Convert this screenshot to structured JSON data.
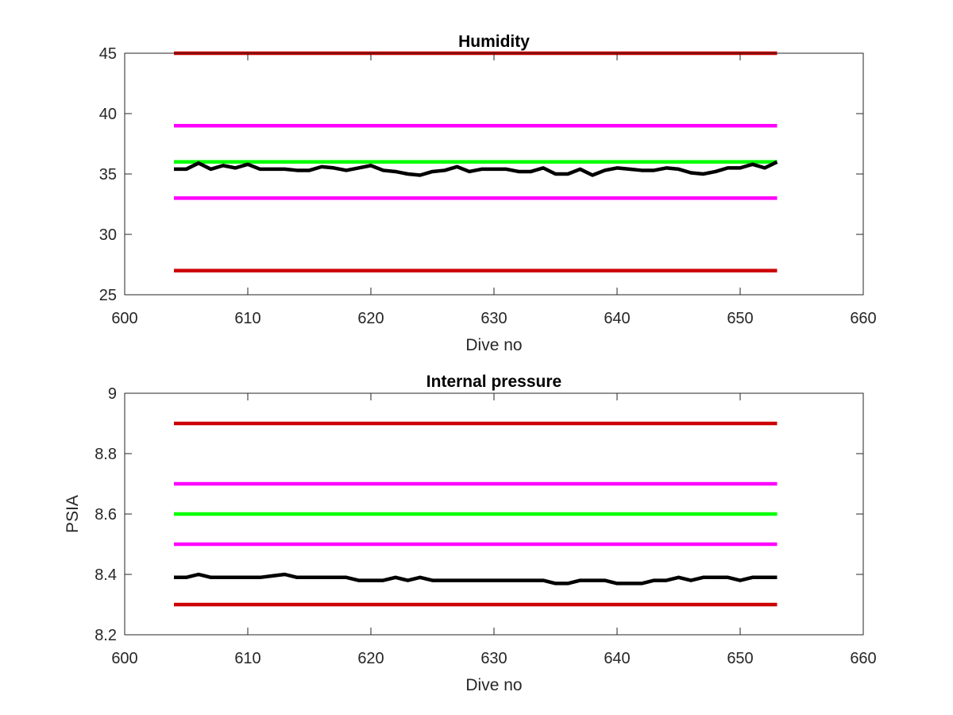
{
  "figure": {
    "background": "#ffffff",
    "axes_color": "#262626"
  },
  "chart_data": [
    {
      "type": "line",
      "title": "Humidity",
      "xlabel": "Dive no",
      "ylabel": "",
      "xlim": [
        600,
        660
      ],
      "ylim": [
        25,
        45
      ],
      "xticks": [
        600,
        610,
        620,
        630,
        640,
        650,
        660
      ],
      "yticks": [
        25,
        30,
        35,
        40,
        45
      ],
      "grid": false,
      "series": [
        {
          "color": "#cc0000",
          "x": [
            604,
            653
          ],
          "y": [
            45,
            45
          ]
        },
        {
          "color": "#ff00ff",
          "x": [
            604,
            653
          ],
          "y": [
            39,
            39
          ]
        },
        {
          "color": "#00ff00",
          "x": [
            604,
            653
          ],
          "y": [
            36,
            36
          ]
        },
        {
          "color": "#ff00ff",
          "x": [
            604,
            653
          ],
          "y": [
            33,
            33
          ]
        },
        {
          "color": "#cc0000",
          "x": [
            604,
            653
          ],
          "y": [
            27,
            27
          ]
        },
        {
          "color": "#000000",
          "x": [
            604,
            605,
            606,
            607,
            608,
            609,
            610,
            611,
            612,
            613,
            614,
            615,
            616,
            617,
            618,
            619,
            620,
            621,
            622,
            623,
            624,
            625,
            626,
            627,
            628,
            629,
            630,
            631,
            632,
            633,
            634,
            635,
            636,
            637,
            638,
            639,
            640,
            641,
            642,
            643,
            644,
            645,
            646,
            647,
            648,
            649,
            650,
            651,
            652,
            653
          ],
          "y": [
            35.4,
            35.4,
            35.9,
            35.4,
            35.7,
            35.5,
            35.8,
            35.4,
            35.4,
            35.4,
            35.3,
            35.3,
            35.6,
            35.5,
            35.3,
            35.5,
            35.7,
            35.3,
            35.2,
            35.0,
            34.9,
            35.2,
            35.3,
            35.6,
            35.2,
            35.4,
            35.4,
            35.4,
            35.2,
            35.2,
            35.5,
            35.0,
            35.0,
            35.4,
            34.9,
            35.3,
            35.5,
            35.4,
            35.3,
            35.3,
            35.5,
            35.4,
            35.1,
            35.0,
            35.2,
            35.5,
            35.5,
            35.8,
            35.5,
            36.0
          ]
        }
      ]
    },
    {
      "type": "line",
      "title": "Internal pressure",
      "xlabel": "Dive no",
      "ylabel": "PSIA",
      "xlim": [
        600,
        660
      ],
      "ylim": [
        8.2,
        9.0
      ],
      "xticks": [
        600,
        610,
        620,
        630,
        640,
        650,
        660
      ],
      "yticks": [
        8.2,
        8.4,
        8.6,
        8.8,
        9
      ],
      "ytick_labels": [
        "8.2",
        "8.4",
        "8.6",
        "8.8",
        "9"
      ],
      "grid": false,
      "series": [
        {
          "color": "#cc0000",
          "x": [
            604,
            653
          ],
          "y": [
            8.9,
            8.9
          ]
        },
        {
          "color": "#ff00ff",
          "x": [
            604,
            653
          ],
          "y": [
            8.7,
            8.7
          ]
        },
        {
          "color": "#00ff00",
          "x": [
            604,
            653
          ],
          "y": [
            8.6,
            8.6
          ]
        },
        {
          "color": "#ff00ff",
          "x": [
            604,
            653
          ],
          "y": [
            8.5,
            8.5
          ]
        },
        {
          "color": "#cc0000",
          "x": [
            604,
            653
          ],
          "y": [
            8.3,
            8.3
          ]
        },
        {
          "color": "#000000",
          "x": [
            604,
            605,
            606,
            607,
            608,
            609,
            610,
            611,
            612,
            613,
            614,
            615,
            616,
            617,
            618,
            619,
            620,
            621,
            622,
            623,
            624,
            625,
            626,
            627,
            628,
            629,
            630,
            631,
            632,
            633,
            634,
            635,
            636,
            637,
            638,
            639,
            640,
            641,
            642,
            643,
            644,
            645,
            646,
            647,
            648,
            649,
            650,
            651,
            652,
            653
          ],
          "y": [
            8.39,
            8.39,
            8.4,
            8.39,
            8.39,
            8.39,
            8.39,
            8.39,
            8.395,
            8.4,
            8.39,
            8.39,
            8.39,
            8.39,
            8.39,
            8.38,
            8.38,
            8.38,
            8.39,
            8.38,
            8.39,
            8.38,
            8.38,
            8.38,
            8.38,
            8.38,
            8.38,
            8.38,
            8.38,
            8.38,
            8.38,
            8.37,
            8.37,
            8.38,
            8.38,
            8.38,
            8.37,
            8.37,
            8.37,
            8.38,
            8.38,
            8.39,
            8.38,
            8.39,
            8.39,
            8.39,
            8.38,
            8.39,
            8.39,
            8.39
          ]
        }
      ]
    }
  ]
}
